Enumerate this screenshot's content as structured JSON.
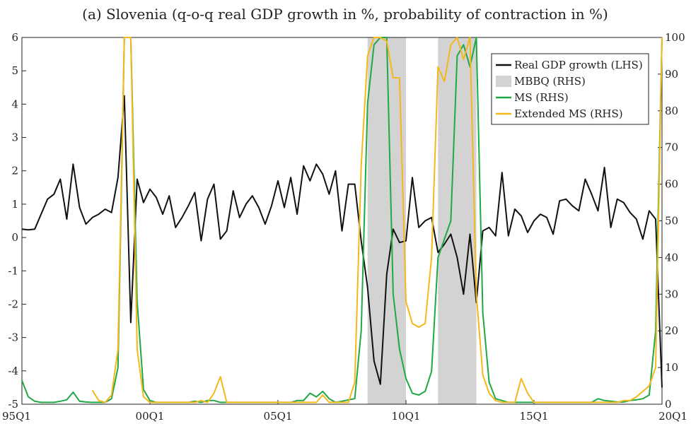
{
  "chart_data": {
    "type": "line",
    "title": "(a) Slovenia (q-o-q real GDP growth in %, probability of contraction in %)",
    "x_ticks": [
      "95Q1",
      "00Q1",
      "05Q1",
      "10Q1",
      "15Q1",
      "20Q1"
    ],
    "y_left": {
      "lim": [
        -5,
        6
      ],
      "ticks": [
        "-5",
        "-4",
        "-3",
        "-2",
        "-1",
        "0",
        "1",
        "2",
        "3",
        "4",
        "5",
        "6"
      ]
    },
    "y_right": {
      "lim": [
        0,
        100
      ],
      "ticks": [
        "0",
        "10",
        "20",
        "30",
        "40",
        "50",
        "60",
        "70",
        "80",
        "90",
        "100"
      ]
    },
    "x_start": 1995.0,
    "x_end": 2020.0,
    "grid": false,
    "legend_position": "top-right",
    "colors": {
      "gdp": "#111111",
      "mbbq": "#d3d3d3",
      "ms": "#1fa845",
      "ext_ms": "#f4b81a"
    },
    "legend": [
      {
        "label": "Real GDP growth (LHS)",
        "key": "gdp",
        "kind": "line"
      },
      {
        "label": "MBBQ (RHS)",
        "key": "mbbq",
        "kind": "box"
      },
      {
        "label": "MS (RHS)",
        "key": "ms",
        "kind": "line"
      },
      {
        "label": "Extended MS (RHS)",
        "key": "ext_ms",
        "kind": "line"
      }
    ],
    "mbbq_periods": [
      [
        2008.5,
        2010.0
      ],
      [
        2011.25,
        2012.75
      ]
    ],
    "series": [
      {
        "key": "gdp",
        "axis": "left",
        "points": [
          [
            1995.0,
            0.25
          ],
          [
            1995.25,
            0.23
          ],
          [
            1995.5,
            0.25
          ],
          [
            1995.75,
            0.7
          ],
          [
            1996.0,
            1.15
          ],
          [
            1996.25,
            1.3
          ],
          [
            1996.5,
            1.75
          ],
          [
            1996.75,
            0.55
          ],
          [
            1997.0,
            2.2
          ],
          [
            1997.25,
            0.9
          ],
          [
            1997.5,
            0.4
          ],
          [
            1997.75,
            0.6
          ],
          [
            1998.0,
            0.7
          ],
          [
            1998.25,
            0.85
          ],
          [
            1998.5,
            0.75
          ],
          [
            1998.75,
            1.8
          ],
          [
            1999.0,
            4.25
          ],
          [
            1999.25,
            -2.55
          ],
          [
            1999.5,
            1.75
          ],
          [
            1999.75,
            1.05
          ],
          [
            2000.0,
            1.45
          ],
          [
            2000.25,
            1.2
          ],
          [
            2000.5,
            0.7
          ],
          [
            2000.75,
            1.25
          ],
          [
            2001.0,
            0.3
          ],
          [
            2001.25,
            0.6
          ],
          [
            2001.5,
            0.95
          ],
          [
            2001.75,
            1.35
          ],
          [
            2002.0,
            -0.1
          ],
          [
            2002.25,
            1.15
          ],
          [
            2002.5,
            1.6
          ],
          [
            2002.75,
            -0.05
          ],
          [
            2003.0,
            0.2
          ],
          [
            2003.25,
            1.4
          ],
          [
            2003.5,
            0.6
          ],
          [
            2003.75,
            1.0
          ],
          [
            2004.0,
            1.25
          ],
          [
            2004.25,
            0.9
          ],
          [
            2004.5,
            0.4
          ],
          [
            2004.75,
            0.95
          ],
          [
            2005.0,
            1.7
          ],
          [
            2005.25,
            0.9
          ],
          [
            2005.5,
            1.8
          ],
          [
            2005.75,
            0.7
          ],
          [
            2006.0,
            2.15
          ],
          [
            2006.25,
            1.7
          ],
          [
            2006.5,
            2.2
          ],
          [
            2006.75,
            1.9
          ],
          [
            2007.0,
            1.3
          ],
          [
            2007.25,
            2.0
          ],
          [
            2007.5,
            0.2
          ],
          [
            2007.75,
            1.6
          ],
          [
            2008.0,
            1.6
          ],
          [
            2008.25,
            -0.1
          ],
          [
            2008.5,
            -1.5
          ],
          [
            2008.75,
            -3.7
          ],
          [
            2009.0,
            -4.4
          ],
          [
            2009.25,
            -1.1
          ],
          [
            2009.5,
            0.25
          ],
          [
            2009.75,
            -0.15
          ],
          [
            2010.0,
            -0.1
          ],
          [
            2010.25,
            1.8
          ],
          [
            2010.5,
            0.3
          ],
          [
            2010.75,
            0.5
          ],
          [
            2011.0,
            0.6
          ],
          [
            2011.25,
            -0.45
          ],
          [
            2011.5,
            -0.2
          ],
          [
            2011.75,
            0.1
          ],
          [
            2012.0,
            -0.6
          ],
          [
            2012.25,
            -1.7
          ],
          [
            2012.5,
            0.1
          ],
          [
            2012.75,
            -1.95
          ],
          [
            2013.0,
            0.2
          ],
          [
            2013.25,
            0.3
          ],
          [
            2013.5,
            0.05
          ],
          [
            2013.75,
            1.95
          ],
          [
            2014.0,
            0.05
          ],
          [
            2014.25,
            0.85
          ],
          [
            2014.5,
            0.65
          ],
          [
            2014.75,
            0.15
          ],
          [
            2015.0,
            0.5
          ],
          [
            2015.25,
            0.7
          ],
          [
            2015.5,
            0.6
          ],
          [
            2015.75,
            0.1
          ],
          [
            2016.0,
            1.1
          ],
          [
            2016.25,
            1.15
          ],
          [
            2016.5,
            0.95
          ],
          [
            2016.75,
            0.8
          ],
          [
            2017.0,
            1.75
          ],
          [
            2017.25,
            1.3
          ],
          [
            2017.5,
            0.8
          ],
          [
            2017.75,
            2.1
          ],
          [
            2018.0,
            0.3
          ],
          [
            2018.25,
            1.15
          ],
          [
            2018.5,
            1.05
          ],
          [
            2018.75,
            0.75
          ],
          [
            2019.0,
            0.55
          ],
          [
            2019.25,
            -0.05
          ],
          [
            2019.5,
            0.8
          ],
          [
            2019.75,
            0.55
          ],
          [
            2020.0,
            -4.5
          ]
        ]
      },
      {
        "key": "ms",
        "axis": "right",
        "points": [
          [
            1995.0,
            6.5
          ],
          [
            1995.25,
            2
          ],
          [
            1995.5,
            0.8
          ],
          [
            1995.75,
            0.5
          ],
          [
            1996.0,
            0.5
          ],
          [
            1996.25,
            0.5
          ],
          [
            1996.5,
            0.8
          ],
          [
            1996.75,
            1.2
          ],
          [
            1997.0,
            3.3
          ],
          [
            1997.25,
            0.8
          ],
          [
            1997.5,
            0.6
          ],
          [
            1997.75,
            0.5
          ],
          [
            1998.0,
            0.5
          ],
          [
            1998.25,
            0.5
          ],
          [
            1998.5,
            1.5
          ],
          [
            1998.75,
            10
          ],
          [
            1999.0,
            100
          ],
          [
            1999.25,
            100
          ],
          [
            1999.5,
            28
          ],
          [
            1999.75,
            4
          ],
          [
            2000.0,
            1
          ],
          [
            2000.25,
            0.5
          ],
          [
            2000.5,
            0.5
          ],
          [
            2000.75,
            0.5
          ],
          [
            2001.0,
            0.5
          ],
          [
            2001.25,
            0.5
          ],
          [
            2001.5,
            0.5
          ],
          [
            2001.75,
            0.8
          ],
          [
            2002.0,
            0.5
          ],
          [
            2002.25,
            1
          ],
          [
            2002.5,
            1
          ],
          [
            2002.75,
            0.5
          ],
          [
            2003.0,
            0.5
          ],
          [
            2003.25,
            0.5
          ],
          [
            2003.5,
            0.5
          ],
          [
            2003.75,
            0.5
          ],
          [
            2004.0,
            0.5
          ],
          [
            2004.25,
            0.5
          ],
          [
            2004.5,
            0.5
          ],
          [
            2004.75,
            0.5
          ],
          [
            2005.0,
            0.5
          ],
          [
            2005.25,
            0.5
          ],
          [
            2005.5,
            0.5
          ],
          [
            2005.75,
            1
          ],
          [
            2006.0,
            1
          ],
          [
            2006.25,
            3
          ],
          [
            2006.5,
            2
          ],
          [
            2006.75,
            3.5
          ],
          [
            2007.0,
            1.5
          ],
          [
            2007.25,
            0.5
          ],
          [
            2007.5,
            0.8
          ],
          [
            2007.75,
            1.2
          ],
          [
            2008.0,
            1.5
          ],
          [
            2008.25,
            20
          ],
          [
            2008.5,
            82
          ],
          [
            2008.75,
            98
          ],
          [
            2009.0,
            100
          ],
          [
            2009.25,
            100
          ],
          [
            2009.5,
            30
          ],
          [
            2009.75,
            15
          ],
          [
            2010.0,
            7
          ],
          [
            2010.25,
            3
          ],
          [
            2010.5,
            2.5
          ],
          [
            2010.75,
            3.5
          ],
          [
            2011.0,
            9
          ],
          [
            2011.25,
            40
          ],
          [
            2011.5,
            45
          ],
          [
            2011.75,
            50
          ],
          [
            2012.0,
            95
          ],
          [
            2012.25,
            98
          ],
          [
            2012.5,
            92
          ],
          [
            2012.75,
            100
          ],
          [
            2013.0,
            25
          ],
          [
            2013.25,
            6
          ],
          [
            2013.5,
            1.5
          ],
          [
            2013.75,
            1
          ],
          [
            2014.0,
            0.5
          ],
          [
            2014.25,
            0.5
          ],
          [
            2014.5,
            0.5
          ],
          [
            2014.75,
            0.5
          ],
          [
            2015.0,
            0.5
          ],
          [
            2015.25,
            0.5
          ],
          [
            2015.5,
            0.5
          ],
          [
            2015.75,
            0.5
          ],
          [
            2016.0,
            0.5
          ],
          [
            2016.25,
            0.5
          ],
          [
            2016.5,
            0.5
          ],
          [
            2016.75,
            0.5
          ],
          [
            2017.0,
            0.5
          ],
          [
            2017.25,
            0.5
          ],
          [
            2017.5,
            1.5
          ],
          [
            2017.75,
            1
          ],
          [
            2018.0,
            0.8
          ],
          [
            2018.25,
            0.6
          ],
          [
            2018.5,
            0.6
          ],
          [
            2018.75,
            1
          ],
          [
            2019.0,
            1.2
          ],
          [
            2019.25,
            1.5
          ],
          [
            2019.5,
            2.5
          ],
          [
            2019.75,
            20
          ],
          [
            2020.0,
            100
          ]
        ]
      },
      {
        "key": "ext_ms",
        "axis": "right",
        "points": [
          [
            1997.75,
            3.8
          ],
          [
            1998.0,
            1
          ],
          [
            1998.25,
            0.5
          ],
          [
            1998.5,
            2.5
          ],
          [
            1998.75,
            15
          ],
          [
            1999.0,
            100
          ],
          [
            1999.25,
            100
          ],
          [
            1999.5,
            15
          ],
          [
            1999.75,
            2
          ],
          [
            2000.0,
            0.5
          ],
          [
            2000.25,
            0.5
          ],
          [
            2000.5,
            0.5
          ],
          [
            2000.75,
            0.5
          ],
          [
            2001.0,
            0.5
          ],
          [
            2001.25,
            0.5
          ],
          [
            2001.5,
            0.5
          ],
          [
            2001.75,
            0.5
          ],
          [
            2002.0,
            1
          ],
          [
            2002.25,
            0.5
          ],
          [
            2002.5,
            3
          ],
          [
            2002.75,
            7.5
          ],
          [
            2003.0,
            0.5
          ],
          [
            2003.25,
            0.5
          ],
          [
            2003.5,
            0.5
          ],
          [
            2003.75,
            0.5
          ],
          [
            2004.0,
            0.5
          ],
          [
            2004.25,
            0.5
          ],
          [
            2004.5,
            0.5
          ],
          [
            2004.75,
            0.5
          ],
          [
            2005.0,
            0.5
          ],
          [
            2005.25,
            0.5
          ],
          [
            2005.5,
            0.5
          ],
          [
            2005.75,
            0.5
          ],
          [
            2006.0,
            0.5
          ],
          [
            2006.25,
            0.5
          ],
          [
            2006.5,
            0.5
          ],
          [
            2006.75,
            2.5
          ],
          [
            2007.0,
            0.5
          ],
          [
            2007.25,
            0.5
          ],
          [
            2007.5,
            0.5
          ],
          [
            2007.75,
            0.5
          ],
          [
            2008.0,
            6
          ],
          [
            2008.25,
            65
          ],
          [
            2008.5,
            95
          ],
          [
            2008.75,
            100
          ],
          [
            2009.0,
            100
          ],
          [
            2009.25,
            99
          ],
          [
            2009.5,
            89
          ],
          [
            2009.75,
            89
          ],
          [
            2010.0,
            28
          ],
          [
            2010.25,
            22
          ],
          [
            2010.5,
            21
          ],
          [
            2010.75,
            22
          ],
          [
            2011.0,
            40
          ],
          [
            2011.25,
            92
          ],
          [
            2011.5,
            88
          ],
          [
            2011.75,
            98
          ],
          [
            2012.0,
            100
          ],
          [
            2012.25,
            94
          ],
          [
            2012.5,
            100
          ],
          [
            2012.75,
            30
          ],
          [
            2013.0,
            8
          ],
          [
            2013.25,
            3
          ],
          [
            2013.5,
            1
          ],
          [
            2013.75,
            0.5
          ],
          [
            2014.0,
            0.5
          ],
          [
            2014.25,
            0.5
          ],
          [
            2014.5,
            7
          ],
          [
            2014.75,
            3
          ],
          [
            2015.0,
            0.5
          ],
          [
            2015.25,
            0.5
          ],
          [
            2015.5,
            0.5
          ],
          [
            2015.75,
            0.5
          ],
          [
            2016.0,
            0.5
          ],
          [
            2016.25,
            0.5
          ],
          [
            2016.5,
            0.5
          ],
          [
            2016.75,
            0.5
          ],
          [
            2017.0,
            0.5
          ],
          [
            2017.25,
            0.5
          ],
          [
            2017.5,
            0.5
          ],
          [
            2017.75,
            0.5
          ],
          [
            2018.0,
            0.5
          ],
          [
            2018.25,
            0.5
          ],
          [
            2018.5,
            1
          ],
          [
            2018.75,
            1
          ],
          [
            2019.0,
            2
          ],
          [
            2019.25,
            3.5
          ],
          [
            2019.5,
            5
          ],
          [
            2019.75,
            10
          ],
          [
            2020.0,
            100
          ]
        ]
      }
    ]
  }
}
